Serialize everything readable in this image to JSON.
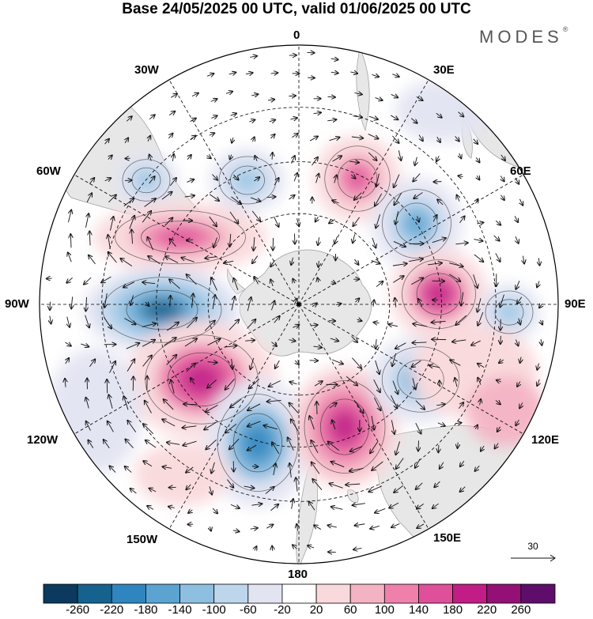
{
  "title": "Base 24/05/2025 00 UTC, valid 01/06/2025 00 UTC",
  "brand": "MODES",
  "brand_mark": "®",
  "longitude_labels": [
    {
      "id": "0",
      "text": "0"
    },
    {
      "id": "30e",
      "text": "30E"
    },
    {
      "id": "60e",
      "text": "60E"
    },
    {
      "id": "90e",
      "text": "90E"
    },
    {
      "id": "120e",
      "text": "120E"
    },
    {
      "id": "150e",
      "text": "150E"
    },
    {
      "id": "180",
      "text": "180"
    },
    {
      "id": "150w",
      "text": "150W"
    },
    {
      "id": "120w",
      "text": "120W"
    },
    {
      "id": "90w",
      "text": "90W"
    },
    {
      "id": "60w",
      "text": "60W"
    },
    {
      "id": "30w",
      "text": "30W"
    }
  ],
  "reference_vector": "30",
  "colorbar": {
    "colors": [
      "#0b3a5e",
      "#15628f",
      "#2e85bf",
      "#5ba4d2",
      "#8fbfe0",
      "#bdd6ec",
      "#e3e4f2",
      "#ffffff",
      "#f9d9dc",
      "#f4b3c3",
      "#ee80ab",
      "#e0509a",
      "#c21c86",
      "#941077",
      "#5e0e6a"
    ],
    "ticks": [
      "-260",
      "-220",
      "-180",
      "-140",
      "-100",
      "-60",
      "-20",
      "20",
      "60",
      "100",
      "140",
      "180",
      "220",
      "260"
    ]
  },
  "map_colors": {
    "land": "#e7e7e7",
    "coast": "#9a9a9a",
    "grid": "#000000",
    "vectors": "#111111"
  },
  "anomaly_centers": [
    {
      "name": "south-atlantic-low-1",
      "value": -140
    },
    {
      "name": "south-atlantic-low-2",
      "value": -120
    },
    {
      "name": "indian-ocean-high-1",
      "value": 180
    },
    {
      "name": "indian-ocean-low-1",
      "value": -200
    },
    {
      "name": "indian-ocean-high-2",
      "value": 220
    },
    {
      "name": "indian-ocean-low-2",
      "value": -140
    },
    {
      "name": "pacific-high-west",
      "value": 180
    },
    {
      "name": "pacific-low-deep",
      "value": -260
    },
    {
      "name": "pacific-high-central",
      "value": 220
    },
    {
      "name": "pacific-low-south",
      "value": -220
    },
    {
      "name": "tasman-high",
      "value": 230
    },
    {
      "name": "south-of-australia-low",
      "value": -200
    }
  ]
}
